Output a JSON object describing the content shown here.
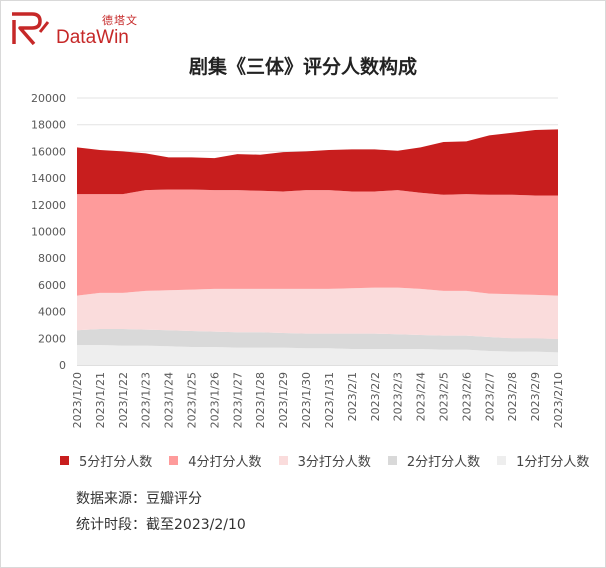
{
  "brand": {
    "name_cn": "德塔文",
    "name_en": "DataWin",
    "color": "#c62828"
  },
  "source_note": "数据来源：豆瓣评分",
  "period_note": "统计时段：截至2023/2/10",
  "chart_data": {
    "type": "area",
    "stacked": true,
    "title": "剧集《三体》评分人数构成",
    "xlabel": "",
    "ylabel": "",
    "ylim": [
      0,
      20000
    ],
    "yticks": [
      0,
      2000,
      4000,
      6000,
      8000,
      10000,
      12000,
      14000,
      16000,
      18000,
      20000
    ],
    "grid": true,
    "legend_position": "bottom",
    "categories": [
      "2023/1/20",
      "2023/1/21",
      "2023/1/22",
      "2023/1/23",
      "2023/1/24",
      "2023/1/25",
      "2023/1/26",
      "2023/1/27",
      "2023/1/28",
      "2023/1/29",
      "2023/1/30",
      "2023/1/31",
      "2023/2/1",
      "2023/2/2",
      "2023/2/3",
      "2023/2/4",
      "2023/2/5",
      "2023/2/6",
      "2023/2/7",
      "2023/2/8",
      "2023/2/9",
      "2023/2/10"
    ],
    "series": [
      {
        "name": "1分打分人数",
        "color": "#eeeeee",
        "values": [
          1500,
          1500,
          1450,
          1450,
          1400,
          1350,
          1350,
          1300,
          1300,
          1300,
          1250,
          1250,
          1200,
          1200,
          1200,
          1200,
          1150,
          1150,
          1050,
          1000,
          1000,
          950
        ]
      },
      {
        "name": "2分打分人数",
        "color": "#d9d9d9",
        "values": [
          1100,
          1200,
          1250,
          1200,
          1200,
          1200,
          1150,
          1150,
          1150,
          1100,
          1100,
          1100,
          1150,
          1150,
          1100,
          1050,
          1050,
          1050,
          1050,
          1000,
          1000,
          1000
        ]
      },
      {
        "name": "3分打分人数",
        "color": "#fadcdc",
        "values": [
          2600,
          2700,
          2700,
          2900,
          3000,
          3100,
          3200,
          3250,
          3250,
          3300,
          3350,
          3350,
          3400,
          3450,
          3500,
          3450,
          3350,
          3350,
          3250,
          3300,
          3250,
          3250
        ]
      },
      {
        "name": "4分打分人数",
        "color": "#fe9b9b",
        "values": [
          7600,
          7400,
          7400,
          7550,
          7550,
          7500,
          7400,
          7400,
          7350,
          7300,
          7400,
          7400,
          7250,
          7200,
          7300,
          7200,
          7200,
          7250,
          7400,
          7450,
          7450,
          7500
        ]
      },
      {
        "name": "5分打分人数",
        "color": "#c81e1e",
        "values": [
          3500,
          3300,
          3200,
          2750,
          2400,
          2400,
          2400,
          2700,
          2700,
          2950,
          2900,
          3000,
          3150,
          3150,
          2950,
          3400,
          3950,
          3950,
          4450,
          4650,
          4900,
          4950
        ]
      }
    ],
    "legend_order": [
      "5分打分人数",
      "4分打分人数",
      "3分打分人数",
      "2分打分人数",
      "1分打分人数"
    ]
  }
}
